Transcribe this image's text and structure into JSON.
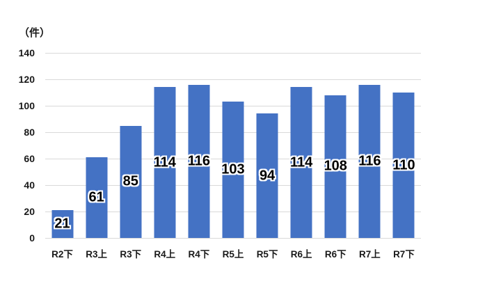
{
  "chart_data": {
    "type": "bar",
    "title": "",
    "unit_label": "（件）",
    "categories": [
      "R2下",
      "R3上",
      "R3下",
      "R4上",
      "R4下",
      "R5上",
      "R5下",
      "R6上",
      "R6下",
      "R7上",
      "R7下"
    ],
    "values": [
      21,
      61,
      85,
      114,
      116,
      103,
      94,
      114,
      108,
      116,
      110
    ],
    "ylim": [
      0,
      140
    ],
    "yticks": [
      0,
      20,
      40,
      60,
      80,
      100,
      120,
      140
    ],
    "grid": true,
    "legend": false,
    "data_label_position": "inside-center",
    "colors": {
      "bar": "#4472C4",
      "gridline": "#D9D9D9",
      "axis_text": "#191919",
      "data_label": "#000000",
      "data_label_outline": "#FFFFFF",
      "background": "#FFFFFF"
    }
  }
}
